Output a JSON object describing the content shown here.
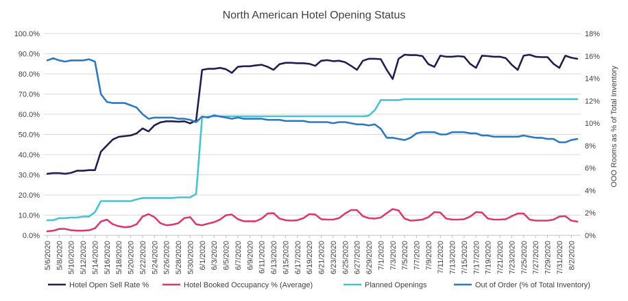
{
  "chart_data": {
    "type": "line",
    "title": "North American Hotel Opening Status",
    "y2label": "OOO Rooms as % of Total Inventory",
    "ylim": [
      0,
      100
    ],
    "y2lim": [
      0,
      18
    ],
    "y_ticks": [
      "0.0%",
      "10.0%",
      "20.0%",
      "30.0%",
      "40.0%",
      "50.0%",
      "60.0%",
      "70.0%",
      "80.0%",
      "90.0%",
      "100.0%"
    ],
    "y2_ticks": [
      "0%",
      "2%",
      "4%",
      "6%",
      "8%",
      "10%",
      "12%",
      "14%",
      "16%",
      "18%"
    ],
    "grid": true,
    "legend_position": "bottom",
    "x": [
      "5/6/2020",
      "5/7/2020",
      "5/8/2020",
      "5/9/2020",
      "5/10/2020",
      "5/11/2020",
      "5/12/2020",
      "5/13/2020",
      "5/14/2020",
      "5/15/2020",
      "5/16/2020",
      "5/17/2020",
      "5/18/2020",
      "5/19/2020",
      "5/20/2020",
      "5/21/2020",
      "5/22/2020",
      "5/23/2020",
      "5/24/2020",
      "5/25/2020",
      "5/26/2020",
      "5/27/2020",
      "5/28/2020",
      "5/29/2020",
      "5/30/2020",
      "5/31/2020",
      "6/1/2020",
      "6/2/2020",
      "6/3/2020",
      "6/4/2020",
      "6/5/2020",
      "6/6/2020",
      "6/7/2020",
      "6/8/2020",
      "6/9/2020",
      "6/10/2020",
      "6/11/2020",
      "6/12/2020",
      "6/13/2020",
      "6/14/2020",
      "6/15/2020",
      "6/16/2020",
      "6/17/2020",
      "6/18/2020",
      "6/19/2020",
      "6/20/2020",
      "6/21/2020",
      "6/22/2020",
      "6/23/2020",
      "6/24/2020",
      "6/25/2020",
      "6/26/2020",
      "6/27/2020",
      "6/28/2020",
      "6/29/2020",
      "6/30/2020",
      "7/1/2020",
      "7/2/2020",
      "7/3/2020",
      "7/4/2020",
      "7/5/2020",
      "7/6/2020",
      "7/7/2020",
      "7/8/2020",
      "7/9/2020",
      "7/10/2020",
      "7/11/2020",
      "7/12/2020",
      "7/13/2020",
      "7/14/2020",
      "7/15/2020",
      "7/16/2020",
      "7/17/2020",
      "7/18/2020",
      "7/19/2020",
      "7/20/2020",
      "7/21/2020",
      "7/22/2020",
      "7/23/2020",
      "7/24/2020",
      "7/25/2020",
      "7/26/2020",
      "7/27/2020",
      "7/28/2020",
      "7/29/2020",
      "7/30/2020",
      "7/31/2020",
      "8/1/2020",
      "8/2/2020",
      "8/3/2020"
    ],
    "x_tick_labels": [
      "5/6/2020",
      "5/8/2020",
      "5/10/2020",
      "5/12/2020",
      "5/14/2020",
      "5/16/2020",
      "5/18/2020",
      "5/20/2020",
      "5/22/2020",
      "5/24/2020",
      "5/26/2020",
      "5/28/2020",
      "5/30/2020",
      "6/1/2020",
      "6/3/2020",
      "6/5/2020",
      "6/7/2020",
      "6/9/2020",
      "6/11/2020",
      "6/13/2020",
      "6/15/2020",
      "6/17/2020",
      "6/19/2020",
      "6/21/2020",
      "6/23/2020",
      "6/25/2020",
      "6/27/2020",
      "6/29/2020",
      "7/1/2020",
      "7/3/2020",
      "7/5/2020",
      "7/7/2020",
      "7/9/2020",
      "7/11/2020",
      "7/13/2020",
      "7/15/2020",
      "7/17/2020",
      "7/19/2020",
      "7/21/2020",
      "7/23/2020",
      "7/25/2020",
      "7/27/2020",
      "7/29/2020",
      "7/31/2020",
      "8/2/2020"
    ],
    "series": [
      {
        "name": "Hotel Open Sell Rate %",
        "axis": "left",
        "color": "#1f1f4f",
        "values": [
          30.5,
          30.8,
          30.8,
          30.5,
          31.0,
          32.0,
          32.0,
          32.3,
          32.3,
          41.5,
          44.5,
          47.5,
          48.8,
          49.2,
          49.5,
          50.5,
          53.0,
          51.5,
          54.5,
          56.0,
          56.5,
          56.5,
          56.3,
          56.5,
          55.5,
          57.0,
          82.0,
          82.5,
          82.5,
          83.0,
          82.3,
          80.5,
          83.5,
          83.8,
          83.8,
          84.2,
          84.5,
          83.5,
          82.0,
          84.8,
          85.5,
          85.5,
          85.3,
          85.3,
          85.0,
          84.0,
          86.5,
          86.8,
          86.3,
          86.5,
          85.8,
          84.0,
          82.0,
          86.5,
          87.5,
          87.5,
          87.3,
          82.0,
          77.5,
          87.5,
          89.5,
          89.3,
          89.3,
          88.8,
          84.8,
          83.5,
          89.0,
          88.5,
          88.5,
          88.8,
          88.5,
          85.0,
          83.0,
          89.0,
          88.8,
          88.5,
          88.5,
          87.8,
          84.5,
          82.0,
          89.0,
          89.5,
          88.5,
          88.3,
          88.3,
          85.0,
          83.0,
          89.0,
          88.0,
          87.5
        ]
      },
      {
        "name": "Hotel Booked Occupancy % (Average)",
        "axis": "left",
        "color": "#d63a6e",
        "values": [
          2.0,
          2.3,
          3.2,
          3.2,
          2.5,
          2.3,
          2.3,
          2.5,
          3.5,
          6.8,
          7.8,
          5.5,
          4.5,
          4.0,
          4.3,
          5.5,
          9.3,
          10.5,
          9.0,
          6.0,
          5.0,
          5.3,
          6.0,
          8.5,
          9.0,
          5.5,
          5.0,
          5.8,
          6.5,
          7.8,
          10.0,
          10.3,
          8.0,
          7.0,
          7.0,
          7.0,
          8.3,
          10.8,
          11.0,
          8.3,
          7.5,
          7.3,
          7.5,
          8.5,
          10.5,
          10.3,
          8.0,
          7.8,
          7.8,
          8.5,
          10.8,
          12.5,
          12.5,
          9.5,
          8.5,
          8.3,
          8.8,
          11.0,
          13.0,
          12.3,
          8.3,
          7.3,
          7.5,
          7.8,
          9.0,
          11.5,
          11.3,
          8.3,
          7.8,
          7.8,
          8.0,
          9.3,
          11.5,
          11.3,
          8.3,
          7.8,
          7.8,
          8.0,
          9.5,
          10.8,
          10.8,
          7.8,
          7.3,
          7.3,
          7.3,
          7.8,
          9.3,
          9.5,
          7.3,
          6.8
        ]
      },
      {
        "name": "Planned Openings",
        "axis": "left",
        "color": "#49c2d0",
        "values": [
          7.5,
          7.5,
          8.5,
          8.5,
          8.8,
          8.8,
          9.3,
          9.3,
          11.5,
          17.0,
          17.0,
          17.0,
          17.0,
          17.0,
          17.0,
          17.8,
          18.5,
          18.5,
          18.5,
          18.5,
          18.5,
          18.5,
          18.8,
          18.8,
          18.8,
          20.5,
          58.5,
          58.8,
          59.0,
          59.0,
          59.0,
          59.0,
          59.0,
          59.0,
          59.0,
          59.0,
          59.0,
          59.0,
          59.0,
          59.0,
          59.0,
          59.0,
          59.0,
          59.0,
          59.0,
          59.0,
          59.0,
          59.0,
          59.0,
          59.0,
          59.0,
          59.0,
          59.0,
          59.0,
          59.3,
          62.0,
          67.0,
          67.0,
          67.0,
          67.0,
          67.5,
          67.5,
          67.5,
          67.5,
          67.5,
          67.5,
          67.5,
          67.5,
          67.5,
          67.5,
          67.5,
          67.5,
          67.5,
          67.5,
          67.5,
          67.5,
          67.5,
          67.5,
          67.5,
          67.5,
          67.5,
          67.5,
          67.5,
          67.5,
          67.5,
          67.5,
          67.5,
          67.5,
          67.5,
          67.5
        ]
      },
      {
        "name": "Out of Order (% of Total Inventory)",
        "axis": "right",
        "color": "#2e78c0",
        "values": [
          15.6,
          15.8,
          15.6,
          15.5,
          15.6,
          15.6,
          15.6,
          15.7,
          15.5,
          12.6,
          11.9,
          11.8,
          11.8,
          11.8,
          11.6,
          11.4,
          10.8,
          10.4,
          10.5,
          10.5,
          10.5,
          10.5,
          10.4,
          10.4,
          10.3,
          10.1,
          10.6,
          10.5,
          10.7,
          10.6,
          10.5,
          10.4,
          10.5,
          10.4,
          10.4,
          10.4,
          10.4,
          10.3,
          10.3,
          10.3,
          10.2,
          10.2,
          10.2,
          10.2,
          10.1,
          10.1,
          10.1,
          10.1,
          10.0,
          10.1,
          10.1,
          10.0,
          9.9,
          9.9,
          9.8,
          9.9,
          9.5,
          8.7,
          8.7,
          8.6,
          8.5,
          8.7,
          9.1,
          9.2,
          9.2,
          9.2,
          9.0,
          9.0,
          9.2,
          9.2,
          9.2,
          9.1,
          9.1,
          8.9,
          8.9,
          8.8,
          8.8,
          8.8,
          8.8,
          8.8,
          8.9,
          8.8,
          8.7,
          8.7,
          8.6,
          8.6,
          8.3,
          8.3,
          8.5,
          8.6
        ]
      }
    ]
  }
}
